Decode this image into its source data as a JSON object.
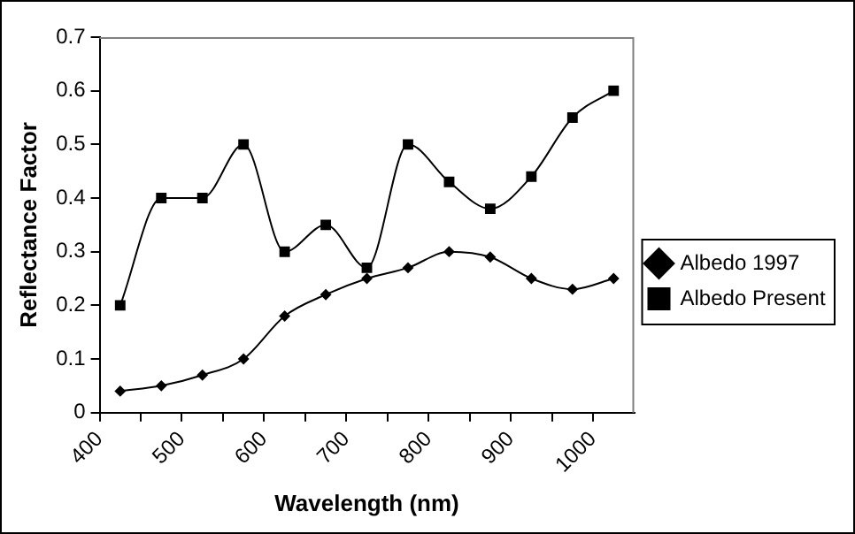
{
  "chart_data": {
    "type": "line",
    "xlabel": "Wavelength (nm)",
    "ylabel": "Reflectance Factor",
    "x": [
      425,
      475,
      525,
      575,
      625,
      675,
      725,
      775,
      825,
      875,
      925,
      975,
      1025
    ],
    "series": [
      {
        "name": "Albedo 1997",
        "color": "#000000",
        "marker": "diamond",
        "values": [
          0.04,
          0.05,
          0.07,
          0.1,
          0.18,
          0.22,
          0.25,
          0.27,
          0.3,
          0.29,
          0.25,
          0.23,
          0.25
        ]
      },
      {
        "name": "Albedo Present",
        "color": "#000000",
        "marker": "square",
        "values": [
          0.2,
          0.4,
          0.4,
          0.5,
          0.3,
          0.35,
          0.27,
          0.5,
          0.43,
          0.38,
          0.44,
          0.55,
          0.6
        ]
      }
    ],
    "xlim": [
      400,
      1050
    ],
    "xticks": [
      400,
      {
        "value": 450,
        "label": null
      },
      500,
      {
        "value": 550,
        "label": null
      },
      600,
      {
        "value": 650,
        "label": null
      },
      700,
      {
        "value": 750,
        "label": null
      },
      800,
      {
        "value": 850,
        "label": null
      },
      900,
      {
        "value": 950,
        "label": null
      },
      1000
    ],
    "ylim": [
      0,
      0.7
    ],
    "yticks": [
      0,
      0.1,
      0.2,
      0.3,
      0.4,
      0.5,
      0.6,
      0.7
    ],
    "grid": false,
    "legend": "right"
  }
}
